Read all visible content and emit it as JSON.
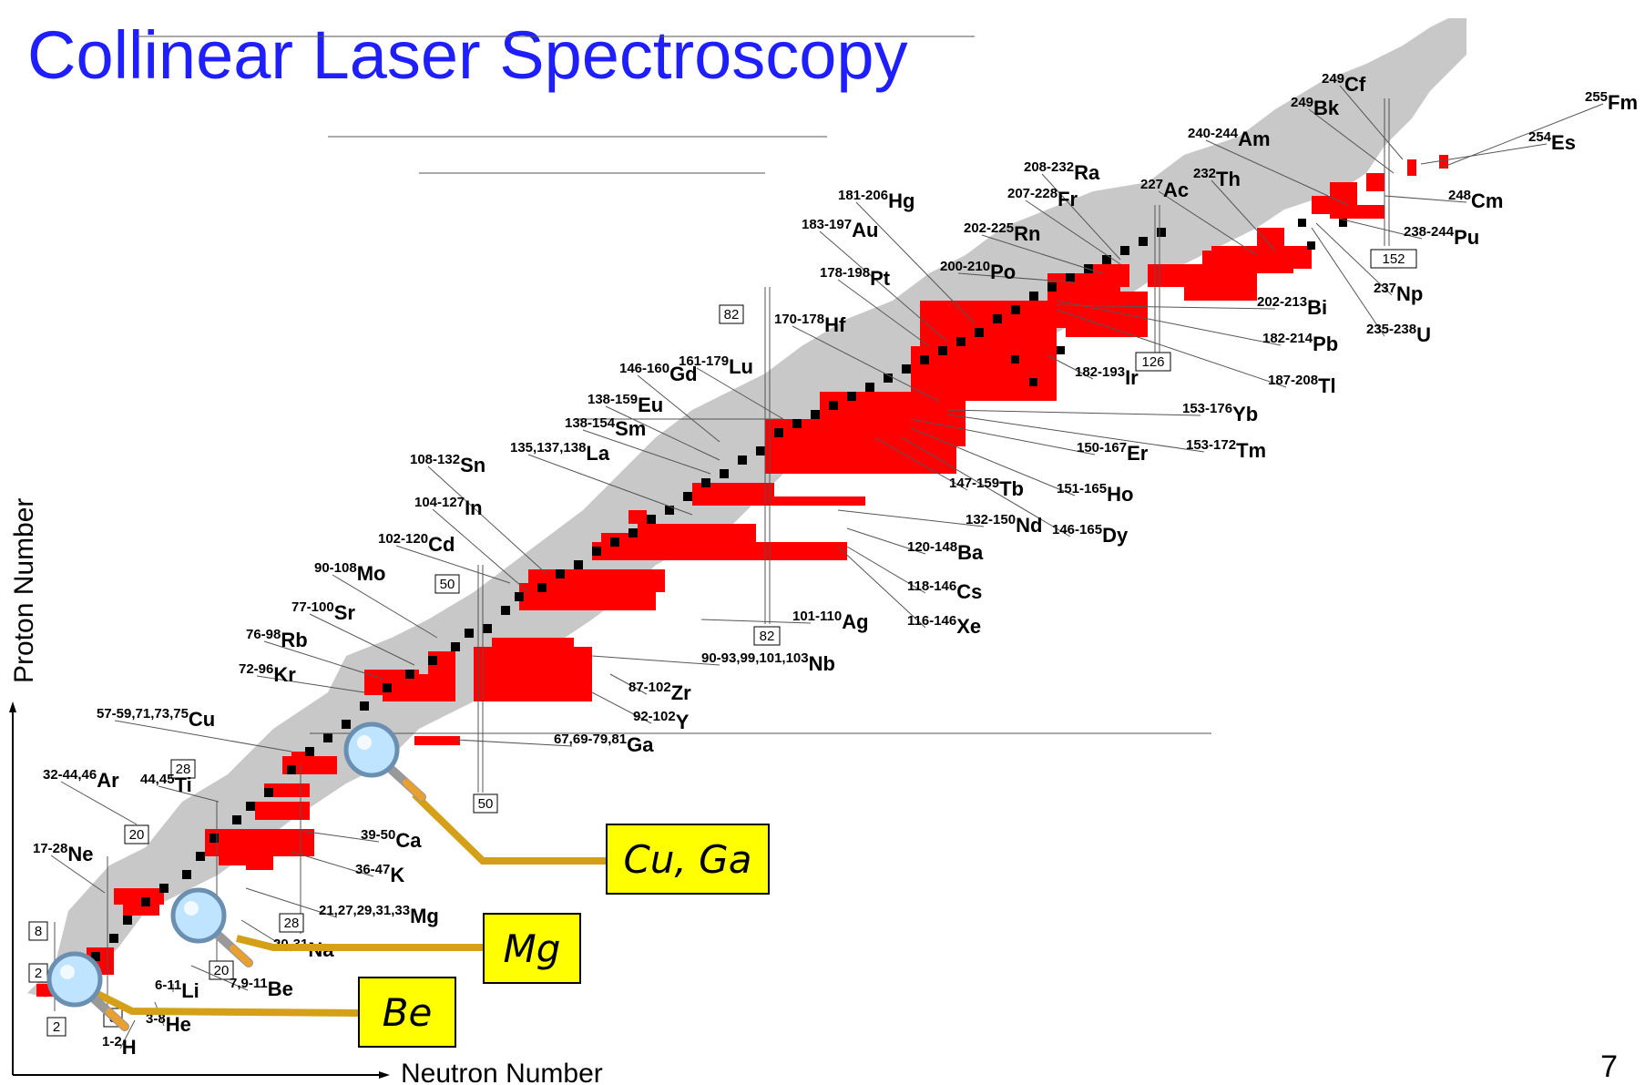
{
  "title": "Collinear Laser Spectroscopy",
  "axes": {
    "x_label": "Neutron Number",
    "y_label": "Proton Number"
  },
  "page_number": "7",
  "colors": {
    "title": "#1e1eff",
    "measured": "#ff0000",
    "stable": "#000000",
    "known": "#c8c8c8",
    "callout_bg": "#ffff00",
    "callout_line": "#d4a017"
  },
  "magic_numbers": {
    "neutron": [
      "2",
      "8",
      "20",
      "28",
      "50",
      "82",
      "126",
      "152"
    ],
    "proton": [
      "2",
      "8",
      "20",
      "28",
      "50",
      "82"
    ]
  },
  "callouts": [
    {
      "id": "cu-ga",
      "text": "Cu, Ga"
    },
    {
      "id": "mg",
      "text": "Mg"
    },
    {
      "id": "be",
      "text": "Be"
    }
  ],
  "isotope_labels": [
    {
      "mass": "1-2",
      "el": "H"
    },
    {
      "mass": "3-8",
      "el": "He"
    },
    {
      "mass": "6-11",
      "el": "Li"
    },
    {
      "mass": "7,9-11",
      "el": "Be"
    },
    {
      "mass": "17-28",
      "el": "Ne"
    },
    {
      "mass": "20-31",
      "el": "Na"
    },
    {
      "mass": "21,27,29,31,33",
      "el": "Mg"
    },
    {
      "mass": "36-47",
      "el": "K"
    },
    {
      "mass": "39-50",
      "el": "Ca"
    },
    {
      "mass": "32-44,46",
      "el": "Ar"
    },
    {
      "mass": "44,45",
      "el": "Ti"
    },
    {
      "mass": "57-59,71,73,75",
      "el": "Cu"
    },
    {
      "mass": "67,69-79,81",
      "el": "Ga"
    },
    {
      "mass": "72-96",
      "el": "Kr"
    },
    {
      "mass": "76-98",
      "el": "Rb"
    },
    {
      "mass": "77-100",
      "el": "Sr"
    },
    {
      "mass": "92-102",
      "el": "Y"
    },
    {
      "mass": "87-102",
      "el": "Zr"
    },
    {
      "mass": "90-93,99,101,103",
      "el": "Nb"
    },
    {
      "mass": "90-108",
      "el": "Mo"
    },
    {
      "mass": "101-110",
      "el": "Ag"
    },
    {
      "mass": "102-120",
      "el": "Cd"
    },
    {
      "mass": "104-127",
      "el": "In"
    },
    {
      "mass": "108-132",
      "el": "Sn"
    },
    {
      "mass": "116-146",
      "el": "Xe"
    },
    {
      "mass": "118-146",
      "el": "Cs"
    },
    {
      "mass": "120-148",
      "el": "Ba"
    },
    {
      "mass": "135,137,138",
      "el": "La"
    },
    {
      "mass": "132-150",
      "el": "Nd"
    },
    {
      "mass": "138-154",
      "el": "Sm"
    },
    {
      "mass": "138-159",
      "el": "Eu"
    },
    {
      "mass": "146-160",
      "el": "Gd"
    },
    {
      "mass": "147-159",
      "el": "Tb"
    },
    {
      "mass": "146-165",
      "el": "Dy"
    },
    {
      "mass": "151-165",
      "el": "Ho"
    },
    {
      "mass": "150-167",
      "el": "Er"
    },
    {
      "mass": "153-172",
      "el": "Tm"
    },
    {
      "mass": "153-176",
      "el": "Yb"
    },
    {
      "mass": "161-179",
      "el": "Lu"
    },
    {
      "mass": "170-178",
      "el": "Hf"
    },
    {
      "mass": "178-198",
      "el": "Pt"
    },
    {
      "mass": "183-197",
      "el": "Au"
    },
    {
      "mass": "181-206",
      "el": "Hg"
    },
    {
      "mass": "187-208",
      "el": "Tl"
    },
    {
      "mass": "182-214",
      "el": "Pb"
    },
    {
      "mass": "202-213",
      "el": "Bi"
    },
    {
      "mass": "200-210",
      "el": "Po"
    },
    {
      "mass": "202-225",
      "el": "Rn"
    },
    {
      "mass": "207-228",
      "el": "Fr"
    },
    {
      "mass": "208-232",
      "el": "Ra"
    },
    {
      "mass": "227",
      "el": "Ac"
    },
    {
      "mass": "232",
      "el": "Th"
    },
    {
      "mass": "235-238",
      "el": "U"
    },
    {
      "mass": "237",
      "el": "Np"
    },
    {
      "mass": "238-244",
      "el": "Pu"
    },
    {
      "mass": "240-244",
      "el": "Am"
    },
    {
      "mass": "248",
      "el": "Cm"
    },
    {
      "mass": "249",
      "el": "Bk"
    },
    {
      "mass": "249",
      "el": "Cf"
    },
    {
      "mass": "254",
      "el": "Es"
    },
    {
      "mass": "255",
      "el": "Fm"
    },
    {
      "mass": "182-193",
      "el": "Ir"
    }
  ]
}
